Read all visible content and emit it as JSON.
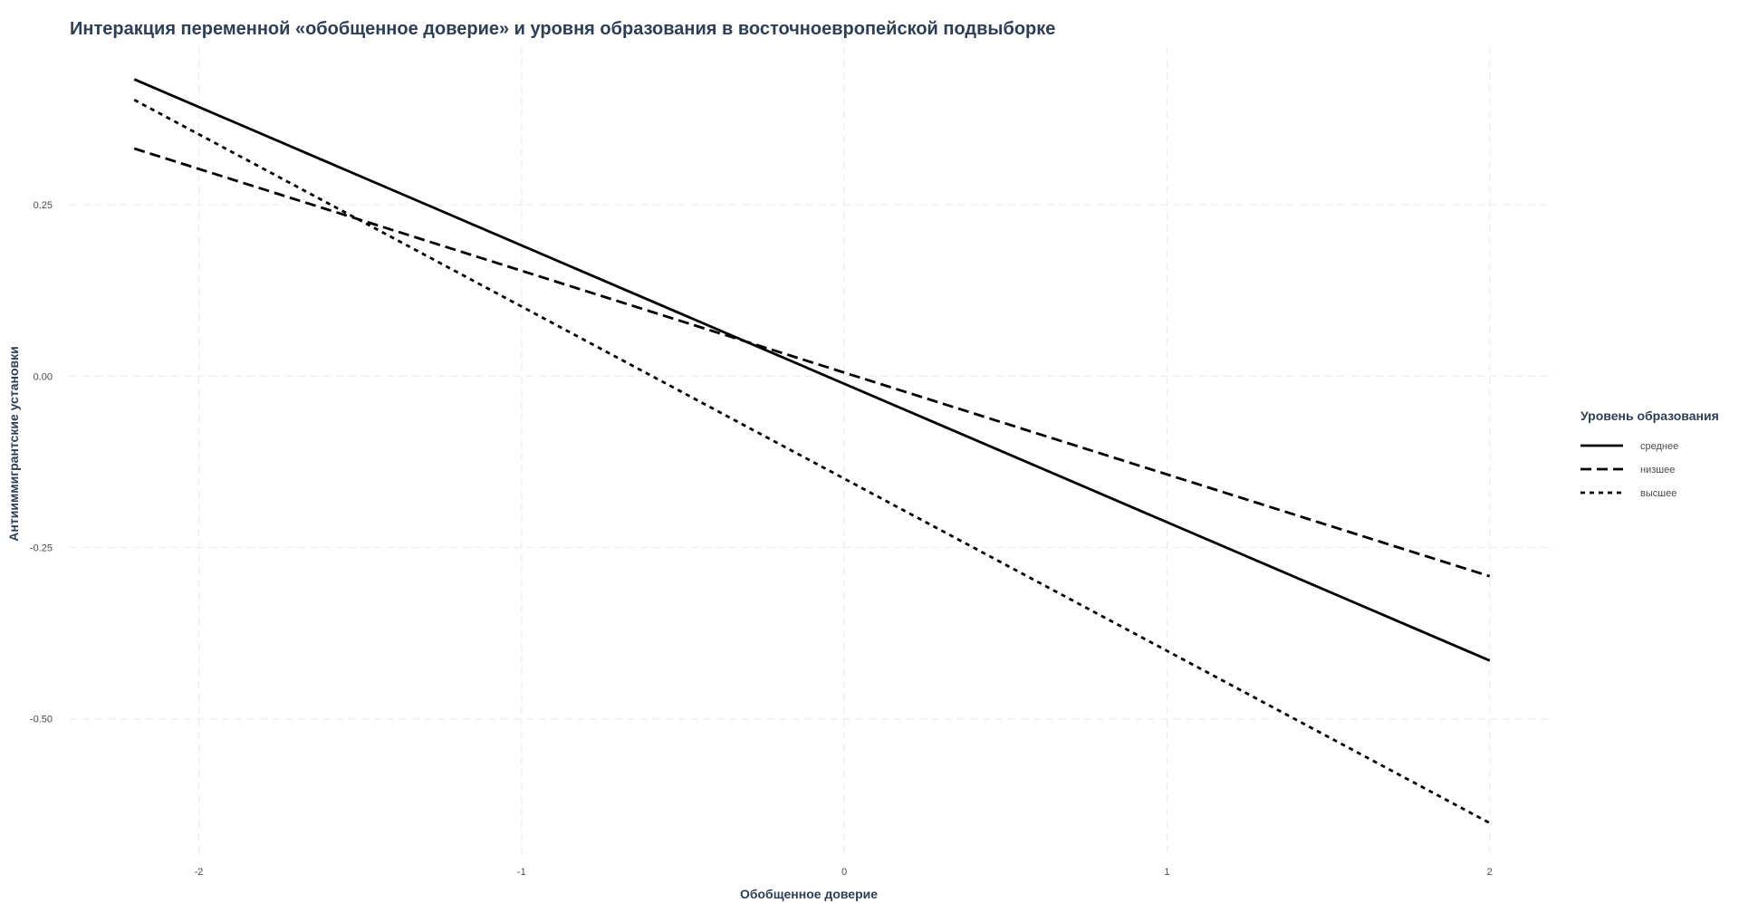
{
  "chart_data": {
    "type": "line",
    "title": "Интеракция переменной «обобщенное доверие» и уровня образования в восточноевропейской подвыборке",
    "xlabel": "Обобщенное доверие",
    "ylabel": "Антииммигрантские установки",
    "xlim": [
      -2.4,
      2.2
    ],
    "ylim": [
      -0.7,
      0.48
    ],
    "x_ticks": [
      -2,
      -1,
      0,
      1,
      2
    ],
    "x_tick_labels": [
      "-2",
      "-1",
      "0",
      "1",
      "2"
    ],
    "y_ticks": [
      0.25,
      0.0,
      -0.25,
      -0.5
    ],
    "y_tick_labels": [
      "0.25",
      "0.00",
      "-0.25",
      "-0.50"
    ],
    "grid": true,
    "legend": {
      "title": "Уровень образования",
      "position": "right"
    },
    "series": [
      {
        "name": "среднее",
        "linetype": "solid",
        "color": "#000000",
        "x": [
          -2.2,
          2.0
        ],
        "y": [
          0.433,
          -0.415
        ]
      },
      {
        "name": "низшее",
        "linetype": "dashed",
        "color": "#000000",
        "x": [
          -2.2,
          2.0
        ],
        "y": [
          0.332,
          -0.292
        ]
      },
      {
        "name": "высшее",
        "linetype": "dotted",
        "color": "#000000",
        "x": [
          -2.2,
          2.0
        ],
        "y": [
          0.403,
          -0.652
        ]
      }
    ]
  }
}
